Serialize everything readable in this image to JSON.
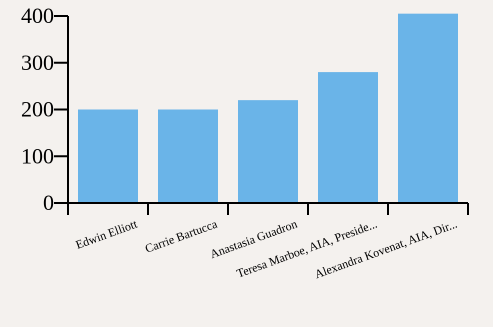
{
  "chart_data": {
    "type": "bar",
    "categories": [
      "Edwin Elliott",
      "Carrie Bartucca",
      "Anastasia Guadron",
      "Teresa Marboe, AIA, Preside...",
      "Alexandra Kovenat, AIA, Dir..."
    ],
    "values": [
      200,
      200,
      220,
      280,
      405
    ],
    "ylim": [
      0,
      400
    ],
    "yticks": [
      0,
      100,
      200,
      300,
      400
    ],
    "title": "",
    "xlabel": "",
    "ylabel": "",
    "grid": false,
    "bar_color": "#6ab4e8",
    "axis_color": "#000000",
    "background_color": "#f4f1ee"
  }
}
